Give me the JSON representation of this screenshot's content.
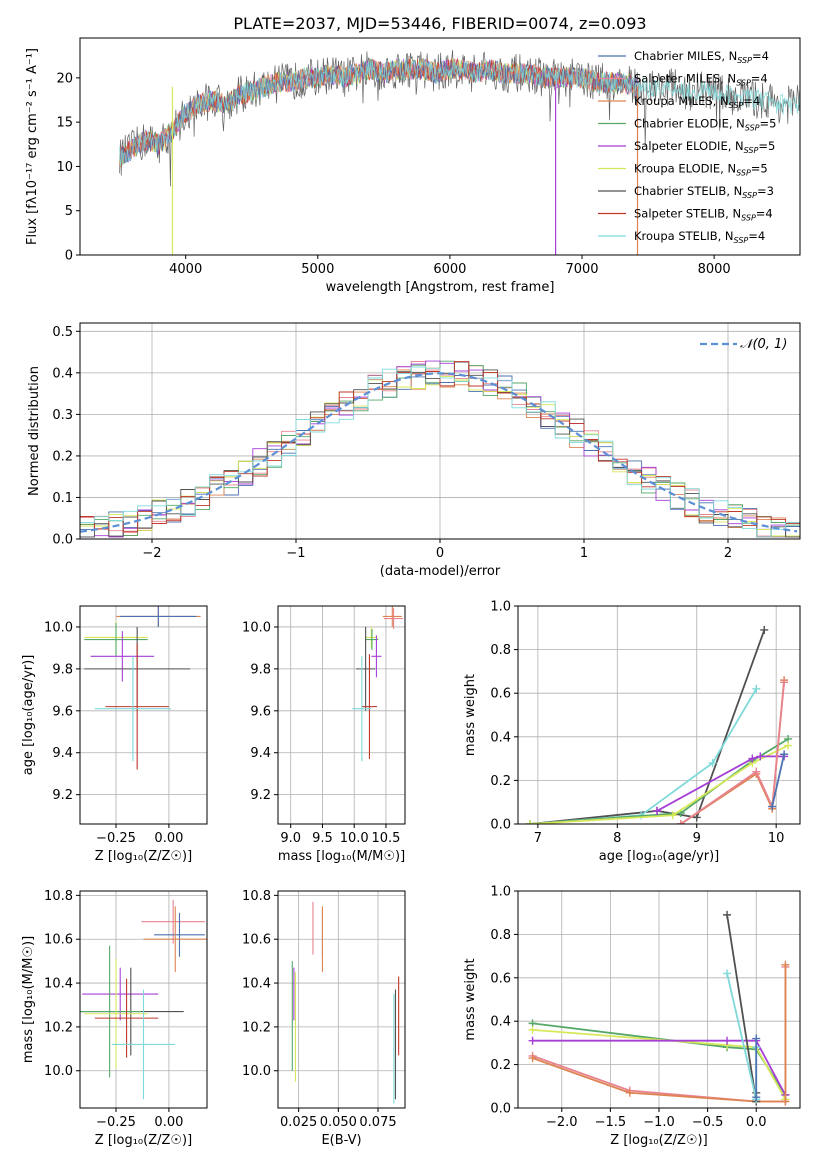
{
  "title": "PLATE=2037, MJD=53446, FIBERID=0074, z=0.093",
  "colors": [
    "#4c72b0",
    "#e8838f",
    "#dd8452",
    "#55a868",
    "#a63fd6",
    "#d6e85a",
    "#505050",
    "#c0392b",
    "#7fd9d9"
  ],
  "legend": [
    "Chabrier MILES, N_SSP=4",
    "Salpeter MILES, N_SSP=4",
    "Kroupa MILES, N_SSP=4",
    "Chabrier ELODIE, N_SSP=5",
    "Salpeter ELODIE, N_SSP=5",
    "Kroupa ELODIE, N_SSP=5",
    "Chabrier STELIB, N_SSP=3",
    "Salpeter STELIB, N_SSP=4",
    "Kroupa STELIB, N_SSP=4"
  ],
  "chart_data": [
    {
      "id": "spectrum",
      "type": "line",
      "xlabel": "wavelength [Angstrom, rest frame]",
      "ylabel": "Flux [fλ10⁻¹⁷ erg cm⁻² s⁻¹ A⁻¹]",
      "xlim": [
        3200,
        8650
      ],
      "ylim": [
        0,
        24.5
      ],
      "xticks": [
        4000,
        5000,
        6000,
        7000,
        8000
      ],
      "yticks": [
        0,
        5,
        10,
        15,
        20
      ],
      "x": [
        3500,
        3600,
        3700,
        3800,
        3900,
        4000,
        4100,
        4200,
        4300,
        4400,
        4500,
        4600,
        4700,
        4800,
        4900,
        5000,
        5100,
        5200,
        5300,
        5400,
        5500,
        5600,
        5700,
        5800,
        5900,
        6000,
        6100,
        6200,
        6300,
        6400,
        6500,
        6600,
        6700,
        6800,
        6900,
        7000,
        7100,
        7200,
        7300,
        7400,
        7500,
        7600,
        7700,
        7800,
        7900,
        8000,
        8100,
        8200,
        8300,
        8400,
        8500,
        8600
      ],
      "y": [
        11,
        12,
        13,
        12.5,
        14,
        16,
        17,
        17.5,
        17,
        18,
        18.5,
        19,
        19.5,
        19.5,
        20,
        20,
        20.5,
        20,
        20.5,
        21,
        20.5,
        21,
        21,
        21,
        20.5,
        21,
        21,
        20.5,
        21,
        20.5,
        20.5,
        20.5,
        20,
        20,
        20,
        20,
        19.5,
        19.5,
        19.5,
        19,
        19,
        19,
        19,
        18.5,
        18.5,
        18.5,
        18,
        18,
        17.5,
        17.5,
        17,
        17
      ]
    },
    {
      "id": "residuals",
      "type": "line",
      "xlabel": "(data-model)/error",
      "ylabel": "Normed distribution",
      "xlim": [
        -2.5,
        2.5
      ],
      "ylim": [
        0,
        0.52
      ],
      "xticks": [
        -2,
        -1,
        0,
        1,
        2
      ],
      "yticks": [
        0.0,
        0.1,
        0.2,
        0.3,
        0.4,
        0.5
      ],
      "legend": "𝒩(0, 1)",
      "series": [
        {
          "name": "𝒩(0, 1)",
          "mean": 0,
          "std": 1
        }
      ]
    },
    {
      "id": "age-vs-Z",
      "type": "scatter",
      "xlabel": "Z [log₁₀(Z/Z☉)]",
      "ylabel": "age  [log₁₀(age/yr)]",
      "xlim": [
        -0.42,
        0.18
      ],
      "ylim": [
        9.06,
        10.1
      ],
      "xticks": [
        -0.25,
        0.0
      ],
      "yticks": [
        9.2,
        9.4,
        9.6,
        9.8,
        10.0
      ],
      "points": [
        {
          "x": -0.05,
          "y": 10.05,
          "xe": 0.2,
          "ye": 0.05,
          "c": 2
        },
        {
          "x": -0.05,
          "y": 10.05,
          "xe": 0.18,
          "ye": 0.05,
          "c": 0
        },
        {
          "x": -0.25,
          "y": 9.95,
          "xe": 0.15,
          "ye": 0.08,
          "c": 5
        },
        {
          "x": -0.25,
          "y": 9.94,
          "xe": 0.15,
          "ye": 0.08,
          "c": 3
        },
        {
          "x": -0.22,
          "y": 9.86,
          "xe": 0.15,
          "ye": 0.12,
          "c": 4
        },
        {
          "x": -0.15,
          "y": 9.8,
          "xe": 0.25,
          "ye": 0.2,
          "c": 6
        },
        {
          "x": -0.15,
          "y": 9.62,
          "xe": 0.15,
          "ye": 0.3,
          "c": 7
        },
        {
          "x": -0.17,
          "y": 9.61,
          "xe": 0.18,
          "ye": 0.25,
          "c": 8
        }
      ]
    },
    {
      "id": "age-vs-mass",
      "type": "scatter",
      "xlabel": "mass [log₁₀(M/M☉)]",
      "ylabel": "",
      "xlim": [
        8.8,
        10.8
      ],
      "ylim": [
        9.06,
        10.1
      ],
      "xticks": [
        9.0,
        9.5,
        10.0,
        10.5
      ],
      "yticks": [
        9.2,
        9.4,
        9.6,
        9.8,
        10.0
      ],
      "points": [
        {
          "x": 10.6,
          "y": 10.05,
          "xe": 0.15,
          "ye": 0.05,
          "c": 2
        },
        {
          "x": 10.62,
          "y": 10.04,
          "xe": 0.15,
          "ye": 0.05,
          "c": 1
        },
        {
          "x": 10.27,
          "y": 9.95,
          "xe": 0.1,
          "ye": 0.05,
          "c": 5
        },
        {
          "x": 10.28,
          "y": 9.94,
          "xe": 0.1,
          "ye": 0.05,
          "c": 3
        },
        {
          "x": 10.35,
          "y": 9.86,
          "xe": 0.08,
          "ye": 0.1,
          "c": 4
        },
        {
          "x": 10.18,
          "y": 9.8,
          "xe": 0.15,
          "ye": 0.2,
          "c": 6
        },
        {
          "x": 10.24,
          "y": 9.62,
          "xe": 0.12,
          "ye": 0.25,
          "c": 7
        },
        {
          "x": 10.12,
          "y": 9.61,
          "xe": 0.15,
          "ye": 0.25,
          "c": 8
        }
      ]
    },
    {
      "id": "weight-vs-age",
      "type": "line",
      "xlabel": "age  [log₁₀(age/yr)]",
      "ylabel": "mass weight",
      "xlim": [
        6.75,
        10.3
      ],
      "ylim": [
        0,
        1
      ],
      "xticks": [
        7,
        8,
        9,
        10
      ],
      "yticks": [
        0.0,
        0.2,
        0.4,
        0.6,
        0.8,
        1.0
      ],
      "series": [
        {
          "c": 6,
          "x": [
            6.9,
            8.5,
            9.0,
            9.85
          ],
          "y": [
            0.0,
            0.06,
            0.03,
            0.89
          ]
        },
        {
          "c": 8,
          "x": [
            6.9,
            8.3,
            9.2,
            9.75
          ],
          "y": [
            0.0,
            0.04,
            0.28,
            0.62
          ]
        },
        {
          "c": 3,
          "x": [
            6.9,
            8.8,
            9.7,
            10.15
          ],
          "y": [
            0.0,
            0.05,
            0.29,
            0.39
          ]
        },
        {
          "c": 5,
          "x": [
            6.9,
            8.7,
            9.7,
            10.15
          ],
          "y": [
            0.0,
            0.04,
            0.28,
            0.36
          ]
        },
        {
          "c": 4,
          "x": [
            8.5,
            9.7,
            9.8,
            10.1
          ],
          "y": [
            0.06,
            0.3,
            0.31,
            0.31
          ]
        },
        {
          "c": 2,
          "x": [
            8.8,
            9.75,
            9.95,
            10.1
          ],
          "y": [
            0.0,
            0.23,
            0.07,
            0.66
          ]
        },
        {
          "c": 1,
          "x": [
            8.8,
            9.75,
            9.95,
            10.1
          ],
          "y": [
            0.0,
            0.24,
            0.08,
            0.65
          ]
        },
        {
          "c": 0,
          "x": [
            9.95,
            10.1
          ],
          "y": [
            0.08,
            0.32
          ]
        }
      ]
    },
    {
      "id": "mass-vs-Z",
      "type": "scatter",
      "xlabel": "Z [log₁₀(Z/Z☉)]",
      "ylabel": "mass [log₁₀(M/M☉)]",
      "xlim": [
        -0.42,
        0.18
      ],
      "ylim": [
        9.83,
        10.82
      ],
      "xticks": [
        -0.25,
        0.0
      ],
      "yticks": [
        10.0,
        10.2,
        10.4,
        10.6,
        10.8
      ],
      "points": [
        {
          "x": 0.02,
          "y": 10.68,
          "xe": 0.15,
          "ye": 0.1,
          "c": 1
        },
        {
          "x": 0.05,
          "y": 10.62,
          "xe": 0.12,
          "ye": 0.1,
          "c": 0
        },
        {
          "x": 0.03,
          "y": 10.6,
          "xe": 0.15,
          "ye": 0.15,
          "c": 2
        },
        {
          "x": -0.23,
          "y": 10.35,
          "xe": 0.18,
          "ye": 0.12,
          "c": 4
        },
        {
          "x": -0.18,
          "y": 10.27,
          "xe": 0.25,
          "ye": 0.2,
          "c": 6
        },
        {
          "x": -0.28,
          "y": 10.27,
          "xe": 0.15,
          "ye": 0.3,
          "c": 3
        },
        {
          "x": -0.25,
          "y": 10.26,
          "xe": 0.15,
          "ye": 0.25,
          "c": 5
        },
        {
          "x": -0.2,
          "y": 10.24,
          "xe": 0.15,
          "ye": 0.18,
          "c": 7
        },
        {
          "x": -0.12,
          "y": 10.12,
          "xe": 0.15,
          "ye": 0.25,
          "c": 8
        }
      ]
    },
    {
      "id": "mass-vs-EBV",
      "type": "scatter",
      "xlabel": "E(B-V)",
      "ylabel": "",
      "xlim": [
        0.012,
        0.092
      ],
      "ylim": [
        9.83,
        10.82
      ],
      "xticks": [
        0.025,
        0.05,
        0.075
      ],
      "yticks": [
        10.0,
        10.2,
        10.4,
        10.6,
        10.8
      ],
      "points": [
        {
          "x": 0.034,
          "y": 10.65,
          "xe": 0,
          "ye": 0.12,
          "c": 1
        },
        {
          "x": 0.04,
          "y": 10.62,
          "xe": 0,
          "ye": 0.1,
          "c": 0
        },
        {
          "x": 0.04,
          "y": 10.6,
          "xe": 0,
          "ye": 0.15,
          "c": 2
        },
        {
          "x": 0.022,
          "y": 10.35,
          "xe": 0,
          "ye": 0.12,
          "c": 4
        },
        {
          "x": 0.021,
          "y": 10.25,
          "xe": 0,
          "ye": 0.25,
          "c": 3
        },
        {
          "x": 0.023,
          "y": 10.2,
          "xe": 0,
          "ye": 0.25,
          "c": 5
        },
        {
          "x": 0.088,
          "y": 10.25,
          "xe": 0,
          "ye": 0.18,
          "c": 7
        },
        {
          "x": 0.086,
          "y": 10.12,
          "xe": 0,
          "ye": 0.25,
          "c": 6
        },
        {
          "x": 0.085,
          "y": 10.1,
          "xe": 0,
          "ye": 0.25,
          "c": 8
        }
      ]
    },
    {
      "id": "weight-vs-Z",
      "type": "line",
      "xlabel": "Z [log₁₀(Z/Z☉)]",
      "ylabel": "mass weight",
      "xlim": [
        -2.45,
        0.45
      ],
      "ylim": [
        0,
        1
      ],
      "xticks": [
        -2.0,
        -1.5,
        -1.0,
        -0.5,
        0.0
      ],
      "yticks": [
        0.0,
        0.2,
        0.4,
        0.6,
        0.8,
        1.0
      ],
      "series": [
        {
          "c": 3,
          "x": [
            -2.3,
            -0.3,
            0.0,
            0.3
          ],
          "y": [
            0.39,
            0.28,
            0.27,
            0.06
          ]
        },
        {
          "c": 5,
          "x": [
            -2.3,
            -0.3,
            0.0,
            0.3
          ],
          "y": [
            0.36,
            0.29,
            0.28,
            0.04
          ]
        },
        {
          "c": 4,
          "x": [
            -2.3,
            -0.3,
            0.0,
            0.3
          ],
          "y": [
            0.31,
            0.31,
            0.31,
            0.06
          ]
        },
        {
          "c": 1,
          "x": [
            -2.3,
            -1.3,
            0.0,
            0.3,
            0.3
          ],
          "y": [
            0.24,
            0.08,
            0.03,
            0.03,
            0.65
          ]
        },
        {
          "c": 2,
          "x": [
            -2.3,
            -1.3,
            0.0,
            0.3,
            0.3
          ],
          "y": [
            0.23,
            0.07,
            0.03,
            0.03,
            0.66
          ]
        },
        {
          "c": 6,
          "x": [
            -0.3,
            0.0,
            0.0
          ],
          "y": [
            0.89,
            0.03,
            0.07
          ]
        },
        {
          "c": 8,
          "x": [
            -0.3,
            0.0,
            0.0
          ],
          "y": [
            0.62,
            0.04,
            0.28
          ]
        },
        {
          "c": 0,
          "x": [
            0.0,
            0.0
          ],
          "y": [
            0.05,
            0.32
          ]
        }
      ]
    }
  ]
}
